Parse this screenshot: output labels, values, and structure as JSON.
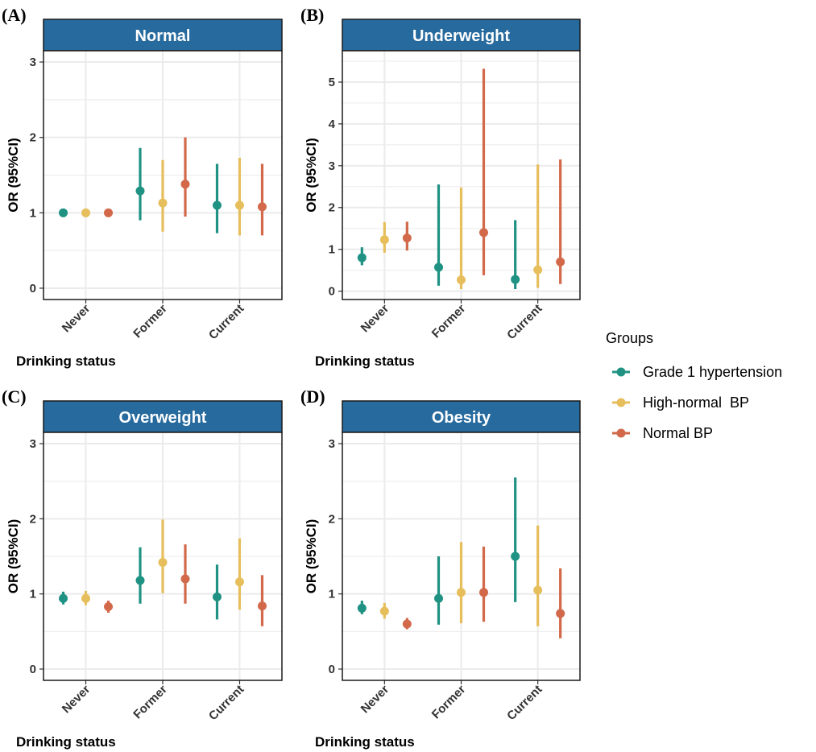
{
  "chart_data": [
    {
      "type": "errorbar",
      "panel": "(A)",
      "title": "Normal",
      "xlabel": "Drinking status",
      "ylabel": "OR (95%CI)",
      "categories": [
        "Never",
        "Former",
        "Current"
      ],
      "ylim": [
        -0.15,
        3.15
      ],
      "yticks": [
        0,
        1,
        2,
        3
      ],
      "series": [
        {
          "name": "Grade 1 hypertension",
          "or": [
            1.0,
            1.29,
            1.1
          ],
          "low": [
            1.0,
            0.9,
            0.73
          ],
          "high": [
            1.0,
            1.86,
            1.65
          ]
        },
        {
          "name": "High-normal  BP",
          "or": [
            1.0,
            1.13,
            1.1
          ],
          "low": [
            1.0,
            0.75,
            0.7
          ],
          "high": [
            1.0,
            1.7,
            1.73
          ]
        },
        {
          "name": "Normal BP",
          "or": [
            1.0,
            1.38,
            1.08
          ],
          "low": [
            1.0,
            0.95,
            0.7
          ],
          "high": [
            1.0,
            2.0,
            1.65
          ]
        }
      ]
    },
    {
      "type": "errorbar",
      "panel": "(B)",
      "title": "Underweight",
      "xlabel": "Drinking status",
      "ylabel": "OR (95%CI)",
      "categories": [
        "Never",
        "Former",
        "Current"
      ],
      "ylim": [
        -0.2,
        5.75
      ],
      "yticks": [
        0,
        1,
        2,
        3,
        4,
        5
      ],
      "series": [
        {
          "name": "Grade 1 hypertension",
          "or": [
            0.8,
            0.57,
            0.28
          ],
          "low": [
            0.62,
            0.13,
            0.05
          ],
          "high": [
            1.05,
            2.55,
            1.7
          ]
        },
        {
          "name": "High-normal  BP",
          "or": [
            1.23,
            0.27,
            0.51
          ],
          "low": [
            0.92,
            0.05,
            0.08
          ],
          "high": [
            1.65,
            2.48,
            3.03
          ]
        },
        {
          "name": "Normal BP",
          "or": [
            1.27,
            1.4,
            0.7
          ],
          "low": [
            0.97,
            0.38,
            0.17
          ],
          "high": [
            1.66,
            5.32,
            3.15
          ]
        }
      ]
    },
    {
      "type": "errorbar",
      "panel": "(C)",
      "title": "Overweight",
      "xlabel": "Drinking status",
      "ylabel": "OR (95%CI)",
      "categories": [
        "Never",
        "Former",
        "Current"
      ],
      "ylim": [
        -0.15,
        3.15
      ],
      "yticks": [
        0,
        1,
        2,
        3
      ],
      "series": [
        {
          "name": "Grade 1 hypertension",
          "or": [
            0.94,
            1.18,
            0.96
          ],
          "low": [
            0.86,
            0.87,
            0.66
          ],
          "high": [
            1.03,
            1.62,
            1.39
          ]
        },
        {
          "name": "High-normal  BP",
          "or": [
            0.94,
            1.42,
            1.16
          ],
          "low": [
            0.85,
            1.01,
            0.79
          ],
          "high": [
            1.04,
            1.99,
            1.74
          ]
        },
        {
          "name": "Normal BP",
          "or": [
            0.83,
            1.2,
            0.84
          ],
          "low": [
            0.75,
            0.87,
            0.57
          ],
          "high": [
            0.91,
            1.66,
            1.25
          ]
        }
      ]
    },
    {
      "type": "errorbar",
      "panel": "(D)",
      "title": "Obesity",
      "xlabel": "Drinking status",
      "ylabel": "OR (95%CI)",
      "categories": [
        "Never",
        "Former",
        "Current"
      ],
      "ylim": [
        -0.15,
        3.15
      ],
      "yticks": [
        0,
        1,
        2,
        3
      ],
      "series": [
        {
          "name": "Grade 1 hypertension",
          "or": [
            0.81,
            0.94,
            1.5
          ],
          "low": [
            0.73,
            0.59,
            0.89
          ],
          "high": [
            0.91,
            1.5,
            2.55
          ]
        },
        {
          "name": "High-normal  BP",
          "or": [
            0.77,
            1.02,
            1.05
          ],
          "low": [
            0.67,
            0.61,
            0.57
          ],
          "high": [
            0.88,
            1.69,
            1.91
          ]
        },
        {
          "name": "Normal BP",
          "or": [
            0.6,
            1.02,
            0.74
          ],
          "low": [
            0.53,
            0.63,
            0.41
          ],
          "high": [
            0.68,
            1.63,
            1.34
          ]
        }
      ]
    }
  ],
  "legend": {
    "title": "Groups",
    "items": [
      "Grade 1 hypertension",
      "High-normal  BP",
      "Normal BP"
    ]
  },
  "colors": {
    "series": [
      "#1f9283",
      "#e6be5c",
      "#d2694a"
    ],
    "strip": "#276a9e",
    "grid": "#ebebeb"
  }
}
